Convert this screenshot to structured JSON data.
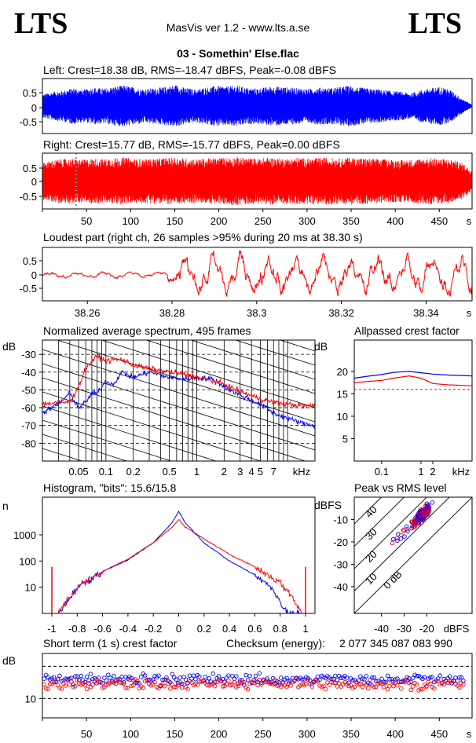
{
  "header": {
    "logo_left": "LTS",
    "logo_right": "LTS",
    "app_title": "MasVis ver 1.2 - www.lts.a.se",
    "file_title": "03 - Somethin' Else.flac"
  },
  "colors": {
    "left": "#0000ff",
    "right": "#ff0000"
  },
  "chart_data": [
    {
      "type": "line",
      "title": "Left: Crest=18.38 dB, RMS=-18.47 dBFS, Peak=-0.08 dBFS",
      "channel": "left",
      "yticks": [
        "0.5",
        "0",
        "-0.5"
      ],
      "ylim": [
        -1,
        1
      ],
      "crest_db": 18.38,
      "rms_dbfs": -18.47,
      "peak_dbfs": -0.08,
      "envelope": [
        0.45,
        0.55,
        0.6,
        0.7,
        0.62,
        0.72,
        0.68,
        0.75,
        0.8,
        0.72,
        0.66,
        0.7,
        0.74,
        0.82,
        0.7,
        0.64,
        0.72,
        0.78,
        0.76,
        0.8,
        0.7,
        0.68,
        0.74,
        0.76,
        0.72,
        0.7,
        0.66,
        0.72,
        0.7,
        0.74,
        0.78,
        0.72,
        0.68,
        0.64,
        0.6,
        0.55,
        0.5,
        0.62,
        0.7,
        0.75,
        0.6,
        0.3,
        0.05
      ]
    },
    {
      "type": "line",
      "title": "Right: Crest=15.77 dB, RMS=-15.77 dBFS, Peak=0.00 dBFS",
      "channel": "right",
      "yticks": [
        "0.5",
        "0",
        "-0.5"
      ],
      "xticks": [
        "50",
        "100",
        "150",
        "200",
        "250",
        "300",
        "350",
        "400",
        "450",
        "s"
      ],
      "xlim": [
        0,
        480
      ],
      "marker_time_s": 38.3,
      "crest_db": 15.77,
      "rms_dbfs": -15.77,
      "peak_dbfs": 0.0,
      "envelope": [
        0.7,
        0.8,
        0.85,
        0.85,
        0.82,
        0.86,
        0.84,
        0.88,
        0.9,
        0.85,
        0.84,
        0.86,
        0.88,
        0.9,
        0.86,
        0.84,
        0.86,
        0.88,
        0.9,
        0.92,
        0.88,
        0.86,
        0.9,
        0.88,
        0.86,
        0.9,
        0.86,
        0.88,
        0.9,
        0.86,
        0.9,
        0.88,
        0.86,
        0.84,
        0.82,
        0.8,
        0.82,
        0.85,
        0.88,
        0.86,
        0.82,
        0.7,
        0.4
      ]
    },
    {
      "type": "line",
      "title": "Loudest part (right ch, 26 samples >95% during 20 ms at 38.30 s)",
      "channel": "right",
      "yticks": [
        "0.5",
        "0",
        "-0.5"
      ],
      "xticks": [
        "38.26",
        "38.28",
        "38.3",
        "38.32",
        "38.34",
        "s"
      ],
      "xlim": [
        38.25,
        38.35
      ],
      "samples_over_95pct": 26,
      "duration_ms": 20,
      "at_s": 38.3
    },
    {
      "type": "line",
      "title": "Normalized average spectrum, 495 frames",
      "ylabel": "dB",
      "yticks": [
        "-30",
        "-40",
        "-50",
        "-60",
        "-70",
        "-80"
      ],
      "xticks": [
        "0.05",
        "0.1",
        "0.2",
        "0.5",
        "1",
        "2",
        "3",
        "4",
        "5",
        "7",
        "kHz"
      ],
      "frames": 495,
      "series": [
        {
          "channel": "left",
          "x_khz": [
            0.02,
            0.03,
            0.04,
            0.05,
            0.06,
            0.07,
            0.08,
            0.1,
            0.12,
            0.15,
            0.2,
            0.3,
            0.5,
            0.7,
            1,
            1.5,
            2,
            3,
            5,
            7,
            10,
            15,
            20
          ],
          "y_db": [
            -63,
            -58,
            -52,
            -60,
            -57,
            -52,
            -52,
            -45,
            -47,
            -40,
            -43,
            -40,
            -43,
            -44,
            -43,
            -44,
            -48,
            -53,
            -58,
            -63,
            -66,
            -69,
            -70
          ]
        },
        {
          "channel": "right",
          "x_khz": [
            0.02,
            0.03,
            0.04,
            0.05,
            0.06,
            0.07,
            0.08,
            0.1,
            0.12,
            0.15,
            0.2,
            0.3,
            0.5,
            0.7,
            1,
            1.5,
            2,
            3,
            5,
            7,
            10,
            15,
            20
          ],
          "y_db": [
            -58,
            -57,
            -57,
            -48,
            -38,
            -34,
            -31,
            -34,
            -33,
            -33,
            -36,
            -38,
            -40,
            -41,
            -43,
            -45,
            -47,
            -51,
            -55,
            -57,
            -58,
            -59,
            -59
          ]
        }
      ]
    },
    {
      "type": "line",
      "title": "Allpassed crest factor",
      "ylabel": "dB",
      "yticks": [
        "20",
        "15",
        "10",
        "5"
      ],
      "xticks": [
        "0.1",
        "1",
        "2",
        "kHz"
      ],
      "reference_db": 16,
      "series": [
        {
          "channel": "left",
          "x_khz": [
            0.02,
            0.05,
            0.1,
            0.2,
            0.5,
            1,
            2,
            5,
            20
          ],
          "y_db": [
            18.5,
            19,
            19.3,
            19.8,
            20,
            19.7,
            19.4,
            19.2,
            19
          ]
        },
        {
          "channel": "right",
          "x_khz": [
            0.02,
            0.05,
            0.1,
            0.2,
            0.5,
            1,
            2,
            5,
            20
          ],
          "y_db": [
            17.5,
            17.8,
            18,
            18.5,
            19,
            18.5,
            17.3,
            17,
            16.8
          ]
        }
      ]
    },
    {
      "type": "line",
      "title": "Histogram, \"bits\": 15.6/15.8",
      "ylabel": "n",
      "yticks": [
        "1000",
        "100",
        "10"
      ],
      "xticks": [
        "-1",
        "-0.8",
        "-0.6",
        "-0.4",
        "-0.2",
        "0",
        "0.2",
        "0.4",
        "0.6",
        "0.8",
        "1"
      ],
      "bits_left": 15.6,
      "bits_right": 15.8,
      "series": [
        {
          "channel": "left",
          "x": [
            -0.95,
            -0.8,
            -0.6,
            -0.4,
            -0.2,
            -0.05,
            0,
            0.05,
            0.2,
            0.4,
            0.6,
            0.75,
            0.85,
            0.95
          ],
          "y": [
            1,
            10,
            40,
            110,
            500,
            3000,
            8000,
            3000,
            500,
            100,
            30,
            8,
            1,
            1
          ]
        },
        {
          "channel": "right",
          "x": [
            -0.95,
            -0.8,
            -0.6,
            -0.4,
            -0.2,
            -0.05,
            0,
            0.05,
            0.2,
            0.4,
            0.6,
            0.8,
            0.9,
            0.97
          ],
          "y": [
            1,
            10,
            40,
            120,
            500,
            2000,
            4000,
            2000,
            700,
            180,
            60,
            15,
            4,
            1
          ]
        }
      ]
    },
    {
      "type": "scatter",
      "title": "Peak vs RMS level",
      "ylabel": "dBFS",
      "yticks": [
        "-10",
        "-20",
        "-30",
        "-40"
      ],
      "xticks": [
        "-40",
        "-30",
        "-20",
        "dBFS"
      ],
      "diagonal_labels": [
        "40",
        "30",
        "20",
        "10",
        "0 dB"
      ]
    },
    {
      "type": "scatter",
      "title": "Short term (1 s) crest factor",
      "ylabel": "dB",
      "yticks": [
        "10"
      ],
      "xticks": [
        "50",
        "100",
        "150",
        "200",
        "250",
        "300",
        "350",
        "400",
        "450",
        "s"
      ],
      "xlim": [
        0,
        480
      ],
      "checksum_label": "Checksum (energy):",
      "checksum_value": "2 077 345 087 083 990",
      "reference_db": [
        10,
        20
      ]
    }
  ]
}
